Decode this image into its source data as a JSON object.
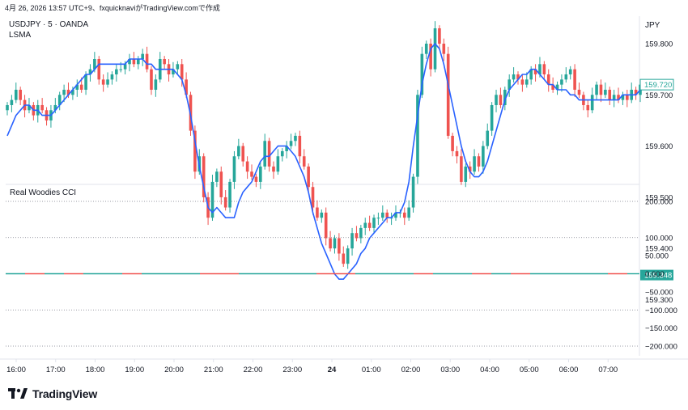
{
  "header": {
    "created_line": "4月 26, 2026 13:57 UTC+9、fxquicknaviがTradingView.comで作成",
    "symbol_line": "USDJPY · 5 · OANDA",
    "indicator": "LSMA",
    "currency": "JPY",
    "oscillator": "Real Woodies CCI"
  },
  "brand": {
    "name": "TradingView"
  },
  "colors": {
    "up": "#26a69a",
    "down": "#ef5350",
    "lsma": "#2962ff",
    "text": "#131722"
  },
  "chart_data": [
    {
      "type": "candlestick",
      "symbol": "USDJPY",
      "interval": "5",
      "source": "OANDA",
      "ylim": [
        159.28,
        159.9
      ],
      "yticks": [
        "159.800",
        "159.700",
        "159.600",
        "159.500",
        "159.400",
        "159.300"
      ],
      "xticks": [
        "16:00",
        "17:00",
        "18:00",
        "19:00",
        "20:00",
        "21:00",
        "22:00",
        "23:00",
        "24",
        "01:00",
        "02:00",
        "03:00",
        "04:00",
        "05:00",
        "06:00",
        "07:00"
      ],
      "last_price_label": "159.720",
      "low_label": "159.348",
      "candles_close": [
        159.68,
        159.69,
        159.71,
        159.69,
        159.67,
        159.68,
        159.66,
        159.68,
        159.67,
        159.65,
        159.67,
        159.68,
        159.7,
        159.71,
        159.7,
        159.71,
        159.72,
        159.71,
        159.74,
        159.75,
        159.77,
        159.73,
        159.72,
        159.73,
        159.74,
        159.75,
        159.75,
        159.76,
        159.77,
        159.76,
        159.77,
        159.78,
        159.75,
        159.71,
        159.73,
        159.77,
        159.76,
        159.74,
        159.75,
        159.76,
        159.73,
        159.7,
        159.63,
        159.55,
        159.58,
        159.5,
        159.46,
        159.53,
        159.55,
        159.5,
        159.48,
        159.53,
        159.58,
        159.6,
        159.57,
        159.55,
        159.54,
        159.53,
        159.56,
        159.61,
        159.56,
        159.55,
        159.58,
        159.59,
        159.6,
        159.61,
        159.62,
        159.58,
        159.56,
        159.52,
        159.48,
        159.46,
        159.47,
        159.42,
        159.4,
        159.42,
        159.39,
        159.37,
        159.4,
        159.43,
        159.42,
        159.44,
        159.45,
        159.44,
        159.46,
        159.46,
        159.47,
        159.46,
        159.46,
        159.47,
        159.47,
        159.46,
        159.48,
        159.54,
        159.7,
        159.78,
        159.8,
        159.75,
        159.83,
        159.8,
        159.78,
        159.62,
        159.59,
        159.58,
        159.53,
        159.56,
        159.55,
        159.58,
        159.56,
        159.6,
        159.63,
        159.68,
        159.7,
        159.68,
        159.71,
        159.73,
        159.74,
        159.73,
        159.72,
        159.73,
        159.75,
        159.74,
        159.76,
        159.74,
        159.72,
        159.71,
        159.72,
        159.73,
        159.74,
        159.75,
        159.71,
        159.7,
        159.68,
        159.67,
        159.7,
        159.72,
        159.7,
        159.71,
        159.69,
        159.7,
        159.69,
        159.7,
        159.69,
        159.71,
        159.7,
        159.72
      ],
      "lsma": [
        159.62,
        159.64,
        159.66,
        159.67,
        159.68,
        159.68,
        159.67,
        159.67,
        159.66,
        159.66,
        159.66,
        159.67,
        159.68,
        159.69,
        159.7,
        159.71,
        159.72,
        159.73,
        159.74,
        159.74,
        159.75,
        159.76,
        159.76,
        159.76,
        159.76,
        159.76,
        159.76,
        159.76,
        159.77,
        159.77,
        159.77,
        159.77,
        159.76,
        159.76,
        159.75,
        159.75,
        159.75,
        159.75,
        159.75,
        159.74,
        159.73,
        159.7,
        159.66,
        159.61,
        159.56,
        159.52,
        159.48,
        159.47,
        159.48,
        159.47,
        159.46,
        159.46,
        159.46,
        159.49,
        159.51,
        159.52,
        159.53,
        159.55,
        159.57,
        159.58,
        159.58,
        159.59,
        159.6,
        159.6,
        159.6,
        159.59,
        159.58,
        159.56,
        159.54,
        159.51,
        159.47,
        159.44,
        159.41,
        159.39,
        159.37,
        159.35,
        159.34,
        159.34,
        159.35,
        159.36,
        159.37,
        159.39,
        159.4,
        159.42,
        159.43,
        159.44,
        159.45,
        159.46,
        159.46,
        159.47,
        159.47,
        159.49,
        159.53,
        159.6,
        159.66,
        159.72,
        159.76,
        159.79,
        159.8,
        159.79,
        159.76,
        159.72,
        159.68,
        159.64,
        159.6,
        159.57,
        159.55,
        159.54,
        159.54,
        159.55,
        159.57,
        159.6,
        159.63,
        159.66,
        159.69,
        159.71,
        159.72,
        159.73,
        159.74,
        159.74,
        159.75,
        159.75,
        159.74,
        159.73,
        159.72,
        159.72,
        159.71,
        159.71,
        159.71,
        159.7,
        159.7,
        159.69,
        159.69,
        159.69,
        159.69,
        159.69,
        159.69,
        159.69,
        159.69,
        159.69,
        159.69,
        159.7,
        159.7,
        159.7,
        159.7,
        159.71
      ]
    },
    {
      "type": "line",
      "name": "Real Woodies CCI",
      "ylim": [
        -220,
        220
      ],
      "yticks": [
        "200.000",
        "100.000",
        "50.000",
        "0.000",
        "−50.000",
        "−100.000",
        "−150.000",
        "−200.000"
      ],
      "level_lines": [
        200,
        100,
        -100,
        -200
      ],
      "zero_line": 0
    }
  ]
}
